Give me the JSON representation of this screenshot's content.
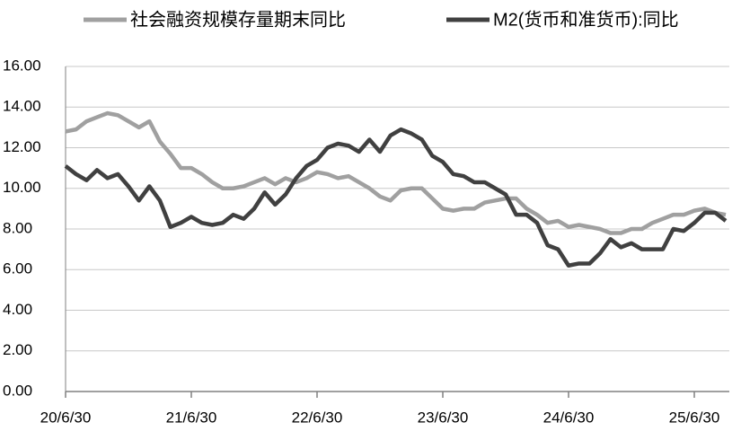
{
  "chart_data": {
    "type": "line",
    "categories": [
      "20/6/30",
      null,
      null,
      null,
      null,
      null,
      null,
      null,
      null,
      null,
      null,
      null,
      "21/6/30",
      null,
      null,
      null,
      null,
      null,
      null,
      null,
      null,
      null,
      null,
      null,
      "22/6/30",
      null,
      null,
      null,
      null,
      null,
      null,
      null,
      null,
      null,
      null,
      null,
      "23/6/30",
      null,
      null,
      null,
      null,
      null,
      null,
      null,
      null,
      null,
      null,
      null,
      "24/6/30",
      null,
      null,
      null,
      null,
      null,
      null,
      null,
      null,
      null,
      null,
      null,
      "25/6/30",
      null,
      null,
      null
    ],
    "series": [
      {
        "name": "社会融资规模存量期末同比",
        "color": "#a0a0a0",
        "values": [
          12.8,
          12.9,
          13.3,
          13.5,
          13.7,
          13.6,
          13.3,
          13.0,
          13.3,
          12.3,
          11.7,
          11.0,
          11.0,
          10.7,
          10.3,
          10.0,
          10.0,
          10.1,
          10.3,
          10.5,
          10.2,
          10.5,
          10.3,
          10.5,
          10.8,
          10.7,
          10.5,
          10.6,
          10.3,
          10.0,
          9.6,
          9.4,
          9.9,
          10.0,
          10.0,
          9.5,
          9.0,
          8.9,
          9.0,
          9.0,
          9.3,
          9.4,
          9.5,
          9.5,
          9.0,
          8.7,
          8.3,
          8.4,
          8.1,
          8.2,
          8.1,
          8.0,
          7.8,
          7.8,
          8.0,
          8.0,
          8.3,
          8.5,
          8.7,
          8.7,
          8.9,
          9.0,
          8.8,
          8.7
        ]
      },
      {
        "name": "M2(货币和准货币):同比",
        "color": "#404040",
        "values": [
          11.1,
          10.7,
          10.4,
          10.9,
          10.5,
          10.7,
          10.1,
          9.4,
          10.1,
          9.4,
          8.1,
          8.3,
          8.6,
          8.3,
          8.2,
          8.3,
          8.7,
          8.5,
          9.0,
          9.8,
          9.2,
          9.7,
          10.5,
          11.1,
          11.4,
          12.0,
          12.2,
          12.1,
          11.8,
          12.4,
          11.8,
          12.6,
          12.9,
          12.7,
          12.4,
          11.6,
          11.3,
          10.7,
          10.6,
          10.3,
          10.3,
          10.0,
          9.7,
          8.7,
          8.7,
          8.3,
          7.2,
          7.0,
          6.2,
          6.3,
          6.3,
          6.8,
          7.5,
          7.1,
          7.3,
          7.0,
          7.0,
          7.0,
          8.0,
          7.9,
          8.3,
          8.8,
          8.8,
          8.4
        ]
      }
    ],
    "ylim": [
      0,
      16
    ],
    "yticks": [
      {
        "value": 0,
        "label": "0.00"
      },
      {
        "value": 2,
        "label": "2.00"
      },
      {
        "value": 4,
        "label": "4.00"
      },
      {
        "value": 6,
        "label": "6.00"
      },
      {
        "value": 8,
        "label": "8.00"
      },
      {
        "value": 10,
        "label": "10.00"
      },
      {
        "value": 12,
        "label": "12.00"
      },
      {
        "value": 14,
        "label": "14.00"
      },
      {
        "value": 16,
        "label": "16.00"
      }
    ],
    "grid": true,
    "legend": "top"
  }
}
